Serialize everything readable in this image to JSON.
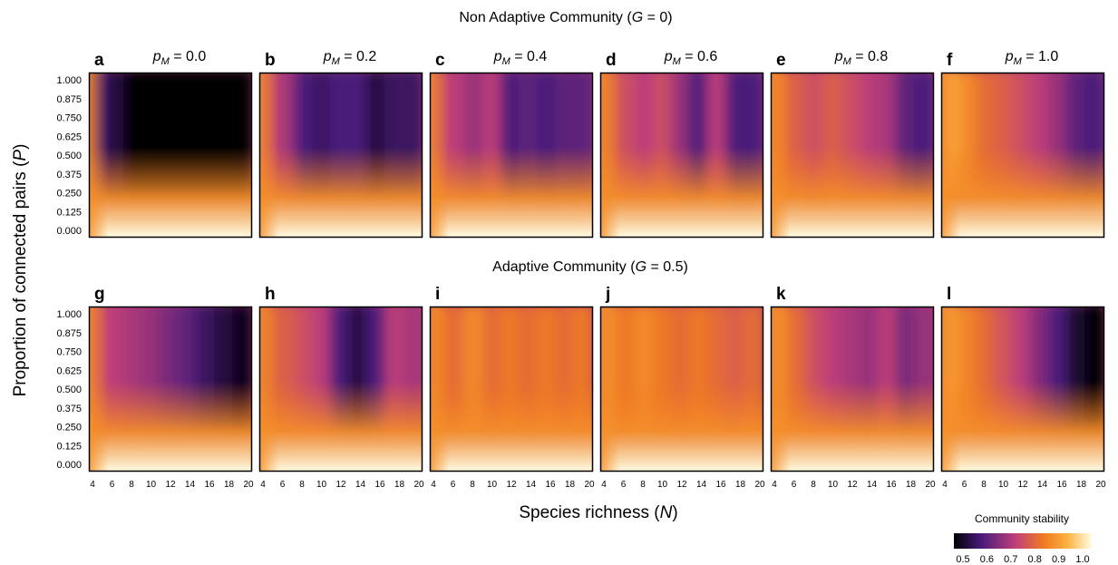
{
  "figure": {
    "top_title": {
      "prefix": "Non Adaptive Community (",
      "var": "G",
      "suffix": " = 0)"
    },
    "bottom_title": {
      "prefix": "Adaptive Community (",
      "var": "G",
      "suffix": " = 0.5)"
    },
    "ylabel": {
      "prefix": "Proportion of connected pairs (",
      "var": "P",
      "suffix": ")"
    },
    "xlabel": {
      "prefix": "Species richness (",
      "var": "N",
      "suffix": ")"
    },
    "colorbar": {
      "title": "Community stability",
      "ticks": [
        "0.5",
        "0.6",
        "0.7",
        "0.8",
        "0.9",
        "1.0"
      ],
      "stops": [
        "#000004",
        "#4a1a7a",
        "#c0407a",
        "#f07a20",
        "#fbb040",
        "#fffde4"
      ]
    }
  },
  "chart_data": {
    "type": "heatmap",
    "x_label": "Species richness (N)",
    "y_label": "Proportion of connected pairs (P)",
    "x_ticks": [
      "4",
      "6",
      "8",
      "10",
      "12",
      "14",
      "16",
      "18",
      "20"
    ],
    "y_ticks": [
      "1.000",
      "0.875",
      "0.750",
      "0.625",
      "0.500",
      "0.375",
      "0.250",
      "0.125",
      "0.000"
    ],
    "color_range": [
      0.5,
      1.0
    ],
    "panels": [
      {
        "letter": "a",
        "pm": "0.0",
        "row": 0,
        "shade": [
          0.6,
          0.55,
          0.5,
          0.5,
          0.5,
          0.5,
          0.5,
          0.5,
          0.5
        ]
      },
      {
        "letter": "b",
        "pm": "0.2",
        "row": 0,
        "shade": [
          0.75,
          0.7,
          0.6,
          0.58,
          0.6,
          0.6,
          0.55,
          0.58,
          0.58
        ]
      },
      {
        "letter": "c",
        "pm": "0.4",
        "row": 0,
        "shade": [
          0.75,
          0.72,
          0.68,
          0.72,
          0.6,
          0.62,
          0.6,
          0.62,
          0.62
        ]
      },
      {
        "letter": "d",
        "pm": "0.6",
        "row": 0,
        "shade": [
          0.8,
          0.75,
          0.72,
          0.75,
          0.68,
          0.6,
          0.72,
          0.6,
          0.6
        ]
      },
      {
        "letter": "e",
        "pm": "0.8",
        "row": 0,
        "shade": [
          0.82,
          0.78,
          0.75,
          0.78,
          0.75,
          0.72,
          0.7,
          0.62,
          0.6
        ]
      },
      {
        "letter": "f",
        "pm": "1.0",
        "row": 0,
        "shade": [
          0.9,
          0.85,
          0.8,
          0.78,
          0.75,
          0.72,
          0.68,
          0.62,
          0.6
        ]
      },
      {
        "letter": "g",
        "pm": "",
        "row": 1,
        "shade": [
          0.75,
          0.72,
          0.7,
          0.68,
          0.65,
          0.62,
          0.58,
          0.55,
          0.52
        ]
      },
      {
        "letter": "h",
        "pm": "",
        "row": 1,
        "shade": [
          0.8,
          0.78,
          0.75,
          0.72,
          0.6,
          0.55,
          0.6,
          0.72,
          0.7
        ]
      },
      {
        "letter": "i",
        "pm": "",
        "row": 1,
        "shade": [
          0.82,
          0.8,
          0.85,
          0.8,
          0.82,
          0.8,
          0.82,
          0.8,
          0.82
        ]
      },
      {
        "letter": "j",
        "pm": "",
        "row": 1,
        "shade": [
          0.85,
          0.82,
          0.85,
          0.82,
          0.8,
          0.82,
          0.8,
          0.78,
          0.8
        ]
      },
      {
        "letter": "k",
        "pm": "",
        "row": 1,
        "shade": [
          0.85,
          0.8,
          0.75,
          0.72,
          0.7,
          0.68,
          0.72,
          0.65,
          0.68
        ]
      },
      {
        "letter": "l",
        "pm": "",
        "row": 1,
        "shade": [
          0.88,
          0.84,
          0.8,
          0.76,
          0.72,
          0.66,
          0.6,
          0.54,
          0.5
        ]
      }
    ]
  }
}
